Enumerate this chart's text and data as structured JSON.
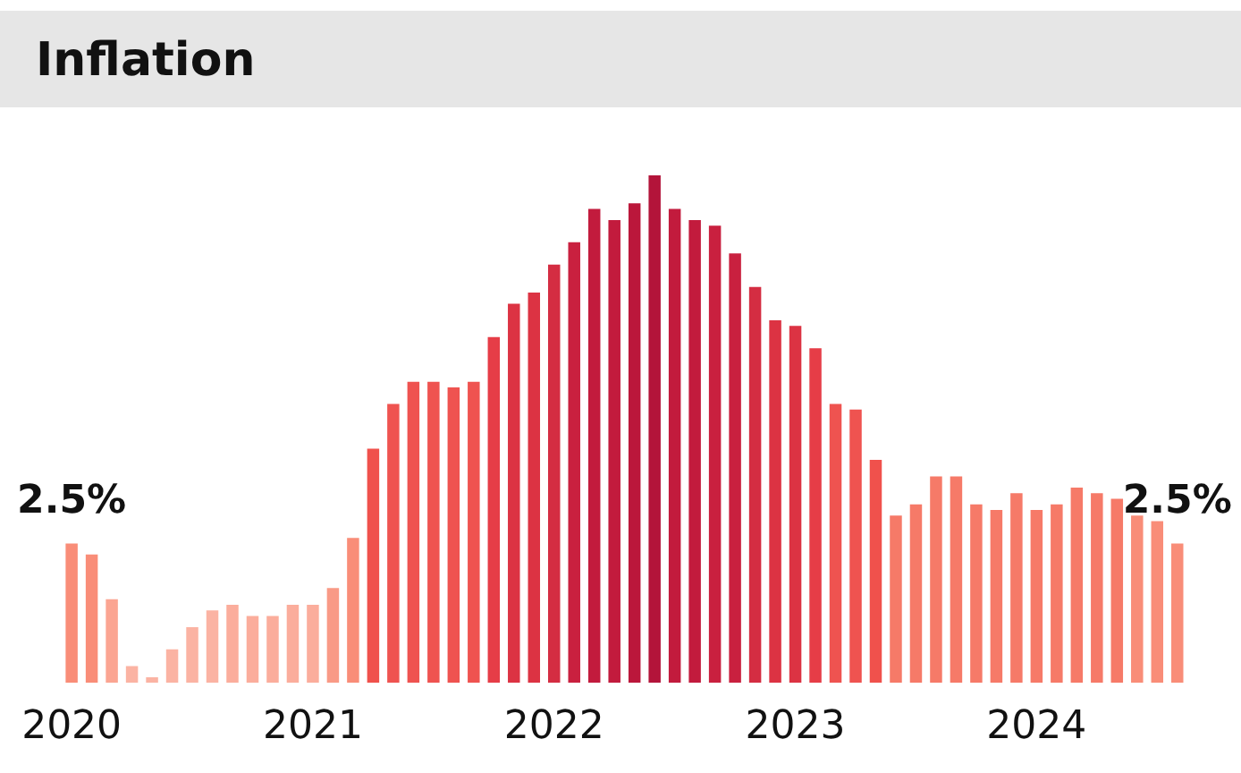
{
  "chart_data": {
    "type": "bar",
    "title": "Inflation",
    "categories": [
      "2020",
      null,
      null,
      null,
      null,
      null,
      null,
      null,
      null,
      null,
      null,
      null,
      "2021",
      null,
      null,
      null,
      null,
      null,
      null,
      null,
      null,
      null,
      null,
      null,
      "2022",
      null,
      null,
      null,
      null,
      null,
      null,
      null,
      null,
      null,
      null,
      null,
      "2023",
      null,
      null,
      null,
      null,
      null,
      null,
      null,
      null,
      null,
      null,
      null,
      "2024",
      null,
      null,
      null,
      null,
      null,
      null,
      null
    ],
    "values": [
      2.5,
      2.3,
      1.5,
      0.3,
      0.1,
      0.6,
      1.0,
      1.3,
      1.4,
      1.2,
      1.2,
      1.4,
      1.4,
      1.7,
      2.6,
      4.2,
      5.0,
      5.4,
      5.4,
      5.3,
      5.4,
      6.2,
      6.8,
      7.0,
      7.5,
      7.9,
      8.5,
      8.3,
      8.6,
      9.1,
      8.5,
      8.3,
      8.2,
      7.7,
      7.1,
      6.5,
      6.4,
      6.0,
      5.0,
      4.9,
      4.0,
      3.0,
      3.2,
      3.7,
      3.7,
      3.2,
      3.1,
      3.4,
      3.1,
      3.2,
      3.5,
      3.4,
      3.3,
      3.0,
      2.9,
      2.5
    ],
    "colors": [
      "#f98d78",
      "#f98d78",
      "#fba592",
      "#fbb3a3",
      "#fbb3a3",
      "#fbb3a3",
      "#fbb3a3",
      "#fbb3a3",
      "#fbad9c",
      "#fbad9c",
      "#fbad9c",
      "#fbad9c",
      "#fbad9c",
      "#f99a86",
      "#f98d78",
      "#f0514c",
      "#ef5350",
      "#ef5350",
      "#ef5350",
      "#ef5350",
      "#ef5350",
      "#e63d47",
      "#dc3343",
      "#dc3343",
      "#d42d42",
      "#c9203f",
      "#c21b3d",
      "#c21b3d",
      "#bb173b",
      "#b3143a",
      "#c21b3d",
      "#c21b3d",
      "#c9203f",
      "#c9203f",
      "#d42d42",
      "#dc3343",
      "#dc3343",
      "#e63d47",
      "#ef5350",
      "#ef5350",
      "#f0514c",
      "#f67a68",
      "#f67a68",
      "#f67a68",
      "#f67a68",
      "#f67a68",
      "#f67a68",
      "#f67a68",
      "#f67a68",
      "#f67a68",
      "#f67a68",
      "#f67a68",
      "#f67a68",
      "#f98d78",
      "#f98d78",
      "#f98d78"
    ],
    "value_labels": [
      "2.5%",
      null,
      null,
      null,
      null,
      null,
      null,
      null,
      null,
      null,
      null,
      null,
      null,
      null,
      null,
      null,
      null,
      null,
      null,
      null,
      null,
      null,
      null,
      null,
      null,
      null,
      null,
      null,
      null,
      null,
      null,
      null,
      null,
      null,
      null,
      null,
      null,
      null,
      null,
      null,
      null,
      null,
      null,
      null,
      null,
      null,
      null,
      null,
      null,
      null,
      null,
      null,
      null,
      null,
      null,
      "2.5%"
    ],
    "grid": false,
    "legend": false
  }
}
